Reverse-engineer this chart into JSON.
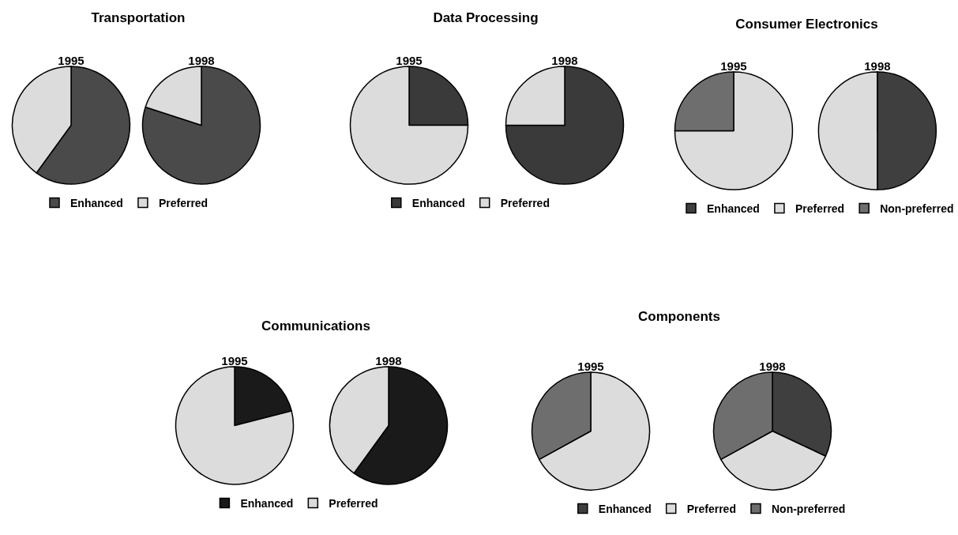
{
  "chart_data": [
    {
      "type": "pie",
      "title": "Transportation",
      "categories": [
        "Enhanced",
        "Preferred"
      ],
      "colors": [
        "#4a4a4a",
        "#dcdcdc"
      ],
      "legend": "bottom",
      "series": [
        {
          "name": "1995",
          "values": [
            60,
            40
          ]
        },
        {
          "name": "1998",
          "values": [
            80,
            20
          ]
        }
      ]
    },
    {
      "type": "pie",
      "title": "Data Processing",
      "categories": [
        "Enhanced",
        "Preferred"
      ],
      "colors": [
        "#3a3a3a",
        "#dcdcdc"
      ],
      "legend": "bottom",
      "series": [
        {
          "name": "1995",
          "values": [
            25,
            75
          ]
        },
        {
          "name": "1998",
          "values": [
            75,
            25
          ]
        }
      ]
    },
    {
      "type": "pie",
      "title": "Consumer Electronics",
      "categories": [
        "Enhanced",
        "Preferred",
        "Non-preferred"
      ],
      "colors": [
        "#3f3f3f",
        "#dcdcdc",
        "#6e6e6e"
      ],
      "legend": "bottom",
      "series": [
        {
          "name": "1995",
          "values": [
            0,
            75,
            25
          ]
        },
        {
          "name": "1998",
          "values": [
            50,
            50,
            0
          ]
        }
      ]
    },
    {
      "type": "pie",
      "title": "Communications",
      "categories": [
        "Enhanced",
        "Preferred"
      ],
      "colors": [
        "#1a1a1a",
        "#dcdcdc"
      ],
      "legend": "bottom",
      "series": [
        {
          "name": "1995",
          "values": [
            21,
            79
          ]
        },
        {
          "name": "1998",
          "values": [
            60,
            40
          ]
        }
      ]
    },
    {
      "type": "pie",
      "title": "Components",
      "categories": [
        "Enhanced",
        "Preferred",
        "Non-preferred"
      ],
      "colors": [
        "#3f3f3f",
        "#dcdcdc",
        "#6e6e6e"
      ],
      "legend": "bottom",
      "series": [
        {
          "name": "1995",
          "values": [
            0,
            67,
            33
          ]
        },
        {
          "name": "1998",
          "values": [
            32,
            35,
            33
          ]
        }
      ]
    }
  ]
}
